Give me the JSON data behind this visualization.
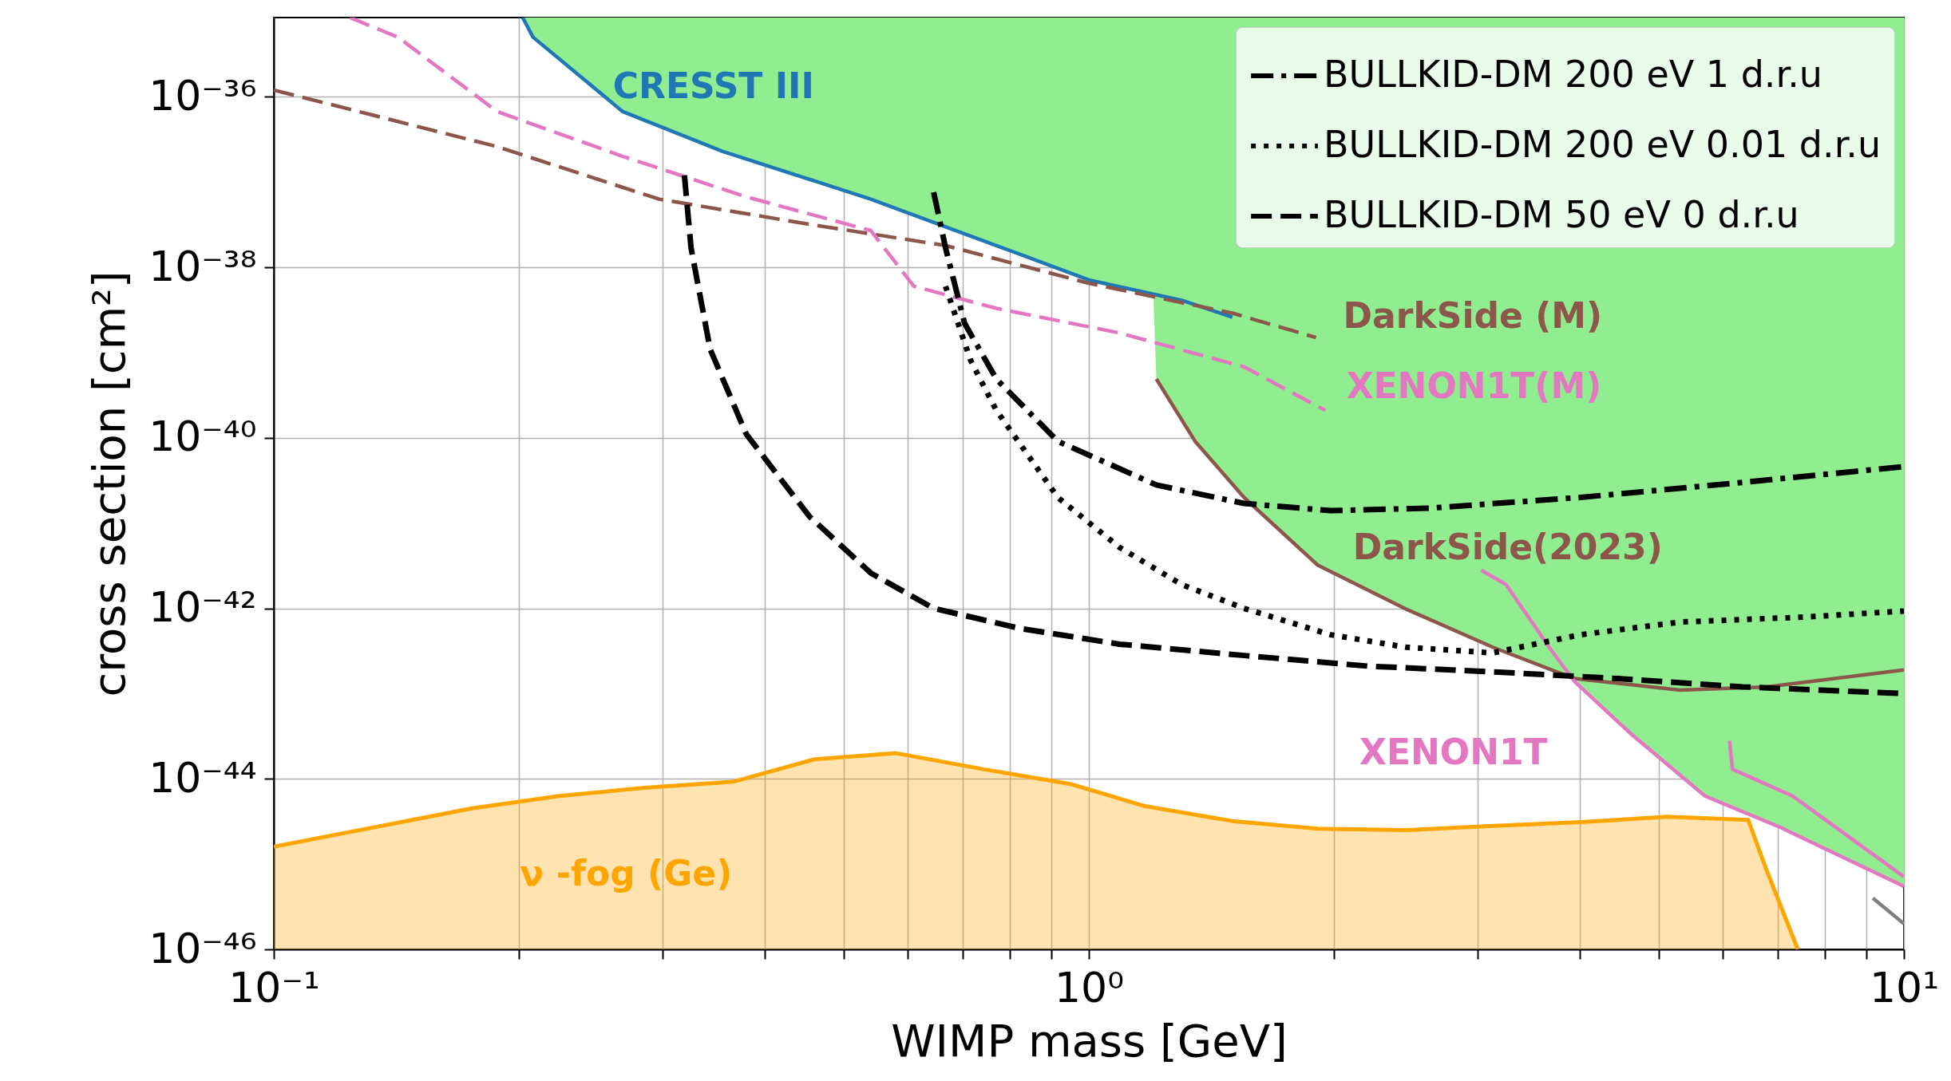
{
  "chart_data": {
    "type": "line",
    "log": "xy",
    "xlabel": "WIMP mass [GeV]",
    "ylabel": "cross section [cm²]",
    "xlim": [
      0.1,
      10
    ],
    "ylim": [
      1e-46,
      8.5e-36
    ],
    "xticks": [
      {
        "value": 0.1,
        "label": "10⁻¹"
      },
      {
        "value": 0.2,
        "label": null
      },
      {
        "value": 0.3,
        "label": null
      },
      {
        "value": 0.4,
        "label": null
      },
      {
        "value": 0.5,
        "label": null
      },
      {
        "value": 0.6,
        "label": null
      },
      {
        "value": 0.7,
        "label": null
      },
      {
        "value": 0.8,
        "label": null
      },
      {
        "value": 0.9,
        "label": null
      },
      {
        "value": 1,
        "label": "10⁰"
      },
      {
        "value": 2,
        "label": null
      },
      {
        "value": 3,
        "label": null
      },
      {
        "value": 4,
        "label": null
      },
      {
        "value": 5,
        "label": null
      },
      {
        "value": 6,
        "label": null
      },
      {
        "value": 7,
        "label": null
      },
      {
        "value": 8,
        "label": null
      },
      {
        "value": 9,
        "label": null
      },
      {
        "value": 10,
        "label": "10¹"
      }
    ],
    "yticks": [
      {
        "value": 1e-46,
        "label": "10⁻⁴⁶"
      },
      {
        "value": 1e-44,
        "label": "10⁻⁴⁴"
      },
      {
        "value": 1e-42,
        "label": "10⁻⁴²"
      },
      {
        "value": 1e-40,
        "label": "10⁻⁴⁰"
      },
      {
        "value": 1e-38,
        "label": "10⁻³⁸"
      },
      {
        "value": 1e-36,
        "label": "10⁻³⁶"
      }
    ],
    "grid": true,
    "legend": "top right",
    "series": [
      {
        "type": "line",
        "color": "#1f77b4",
        "x": [
          0.202,
          0.208,
          0.268,
          0.355,
          0.54,
          0.77,
          1.0,
          1.3,
          1.5
        ],
        "values": [
          8.5e-36,
          5e-36,
          6.7e-37,
          2.3e-37,
          6.3e-38,
          1.8e-38,
          7.1e-39,
          4.1e-39,
          2.6e-39
        ]
      },
      {
        "type": "line",
        "color": "#8c564b",
        "line_style": "dashed",
        "x": [
          0.1,
          0.188,
          0.297,
          0.454,
          0.667,
          1.0,
          1.5,
          1.9
        ],
        "values": [
          1.2e-36,
          2.6e-37,
          6.3e-38,
          3.2e-38,
          1.8e-38,
          6.5e-39,
          2.9e-39,
          1.5e-39
        ]
      },
      {
        "type": "line",
        "color": "#e377c2",
        "line_style": "dashed",
        "x": [
          0.124,
          0.142,
          0.188,
          0.268,
          0.38,
          0.54,
          0.61,
          0.77,
          1.09,
          1.55,
          1.95
        ],
        "values": [
          8.5e-36,
          5e-36,
          6.7e-37,
          2e-37,
          6.7e-38,
          2.7e-38,
          6e-39,
          3.3e-39,
          1.7e-39,
          6.8e-40,
          2.1e-40
        ]
      },
      {
        "type": "line",
        "color": "#8c564b",
        "x": [
          1.21,
          1.35,
          1.55,
          1.91,
          2.45,
          3.13,
          3.94,
          5.31,
          6.79,
          10
        ],
        "values": [
          4.9e-40,
          9.1e-41,
          2e-41,
          3.2e-42,
          9.8e-43,
          3.5e-43,
          1.5e-43,
          1.1e-43,
          1.2e-43,
          1.9e-43
        ]
      },
      {
        "type": "line",
        "color": "#e377c2",
        "x": [
          3.03,
          3.25,
          3.67,
          3.94,
          4.62,
          5.7,
          7.05,
          10
        ],
        "values": [
          2.8e-42,
          1.9e-42,
          3.5e-43,
          1.4e-43,
          3.4e-44,
          6.3e-45,
          2.7e-45,
          5.5e-46
        ]
      },
      {
        "type": "area",
        "color": "#ffa500",
        "x": [
          0.1,
          0.175,
          0.224,
          0.287,
          0.367,
          0.461,
          0.58,
          0.742,
          0.949,
          1.17,
          1.5,
          1.91,
          2.45,
          3.13,
          4.01,
          5.13,
          6.44,
          6.79,
          7.41
        ],
        "values": [
          1.6e-45,
          4.5e-45,
          6.3e-45,
          7.9e-45,
          9.3e-45,
          1.7e-44,
          2e-44,
          1.3e-44,
          8.7e-45,
          4.8e-45,
          3.2e-45,
          2.6e-45,
          2.5e-45,
          2.8e-45,
          3.1e-45,
          3.6e-45,
          3.3e-45,
          8.3e-46,
          1e-46
        ]
      },
      {
        "type": "line",
        "color": "#e377c2",
        "x": [
          6.11,
          6.16,
          7.3,
          10
        ],
        "values": [
          2.8e-44,
          1.3e-44,
          6.3e-45,
          7.1e-46
        ]
      },
      {
        "type": "line",
        "color": "#7f7f7f",
        "x": [
          9.16,
          10
        ],
        "values": [
          4e-46,
          2e-46
        ]
      },
      {
        "type": "area",
        "color": "#90ee90",
        "x": [
          0.202,
          0.208,
          0.268,
          0.355,
          0.54,
          0.77,
          1.0,
          1.2,
          1.21,
          1.35,
          1.55,
          1.91,
          2.45,
          3.13,
          3.94,
          4.62,
          5.7,
          7.05,
          10
        ],
        "values": [
          null,
          null,
          null,
          null,
          null,
          null,
          null,
          null,
          null,
          null,
          null,
          null,
          null,
          null,
          null,
          null,
          null,
          null,
          null
        ],
        "lower": [
          8.5e-36,
          5e-36,
          6.7e-37,
          2.3e-37,
          6.3e-38,
          1.8e-38,
          7.1e-39,
          4.6e-39,
          4.9e-40,
          9.1e-41,
          2e-41,
          3.2e-42,
          9.8e-43,
          3.5e-43,
          1.5e-43,
          3.4e-44,
          6.3e-45,
          2.7e-45,
          5.5e-46
        ],
        "upper": [
          8.5e-36,
          8.5e-36,
          8.5e-36,
          8.5e-36,
          8.5e-36,
          8.5e-36,
          8.5e-36,
          8.5e-36,
          8.5e-36,
          8.5e-36,
          8.5e-36,
          8.5e-36,
          8.5e-36,
          8.5e-36,
          8.5e-36,
          8.5e-36,
          8.5e-36,
          8.5e-36,
          8.5e-36
        ]
      },
      {
        "type": "line",
        "name": "BULLKID-DM 200 eV 1 d.r.u",
        "color": "#000000",
        "line_style": "dashdot",
        "x": [
          0.645,
          0.667,
          0.704,
          0.77,
          0.916,
          1.21,
          1.55,
          1.98,
          2.63,
          4.01,
          6.34,
          10
        ],
        "values": [
          7.6e-38,
          1.7e-38,
          2.2e-39,
          4.9e-40,
          9.1e-41,
          2.8e-41,
          1.7e-41,
          1.4e-41,
          1.5e-41,
          2e-41,
          3e-41,
          4.6e-41
        ]
      },
      {
        "type": "line",
        "name": "BULLKID-DM 200 eV 0.01 d.r.u",
        "color": "#000000",
        "line_style": "dotted",
        "x": [
          0.667,
          0.716,
          0.77,
          0.916,
          1.09,
          1.3,
          1.55,
          1.98,
          2.45,
          3.13,
          4.01,
          5.31,
          7.55,
          10
        ],
        "values": [
          6e-39,
          8.1e-40,
          2.1e-40,
          2e-41,
          5.2e-42,
          1.9e-42,
          1e-42,
          4.9e-43,
          3.5e-43,
          3e-43,
          4.9e-43,
          6.9e-43,
          7.9e-43,
          9.3e-43
        ]
      },
      {
        "type": "line",
        "name": "BULLKID-DM 50 eV 0 d.r.u",
        "color": "#000000",
        "line_style": "dashed",
        "x": [
          0.319,
          0.325,
          0.343,
          0.38,
          0.454,
          0.54,
          0.645,
          0.824,
          1.09,
          1.55,
          2.2,
          3.13,
          4.46,
          6.34,
          10
        ],
        "values": [
          1.2e-37,
          1.7e-38,
          1.1e-39,
          1.1e-40,
          1.2e-41,
          2.6e-42,
          1e-42,
          5.8e-43,
          3.8e-43,
          2.8e-43,
          2.1e-43,
          1.8e-43,
          1.5e-43,
          1.2e-43,
          1e-43
        ]
      }
    ],
    "annotations": [
      "CRESST III",
      "DarkSide (M)",
      "XENON1T(M)",
      "DarkSide(2023)",
      "XENON1T",
      "ν -fog (Ge)"
    ]
  }
}
